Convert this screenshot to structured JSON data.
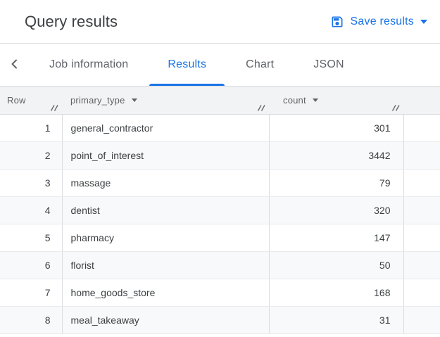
{
  "titlebar": {
    "title": "Query results",
    "save_button": {
      "label": "Save results"
    }
  },
  "tabbar": {
    "tabs": [
      {
        "label": "Job information",
        "active": false
      },
      {
        "label": "Results",
        "active": true
      },
      {
        "label": "Chart",
        "active": false
      },
      {
        "label": "JSON",
        "active": false
      }
    ]
  },
  "results_table": {
    "columns": [
      {
        "label": "Row",
        "has_menu": false
      },
      {
        "label": "primary_type",
        "has_menu": true
      },
      {
        "label": "count",
        "has_menu": true
      }
    ],
    "rows": [
      {
        "row": "1",
        "primary_type": "general_contractor",
        "count": "301"
      },
      {
        "row": "2",
        "primary_type": "point_of_interest",
        "count": "3442"
      },
      {
        "row": "3",
        "primary_type": "massage",
        "count": "79"
      },
      {
        "row": "4",
        "primary_type": "dentist",
        "count": "320"
      },
      {
        "row": "5",
        "primary_type": "pharmacy",
        "count": "147"
      },
      {
        "row": "6",
        "primary_type": "florist",
        "count": "50"
      },
      {
        "row": "7",
        "primary_type": "home_goods_store",
        "count": "168"
      },
      {
        "row": "8",
        "primary_type": "meal_takeaway",
        "count": "31"
      }
    ]
  },
  "colors": {
    "accent": "#1a73e8",
    "header_bg": "#f1f3f4",
    "row_stripe": "#f8f9fa",
    "divider": "#dadce0",
    "text_primary": "#3c4043",
    "text_secondary": "#5f6368"
  }
}
